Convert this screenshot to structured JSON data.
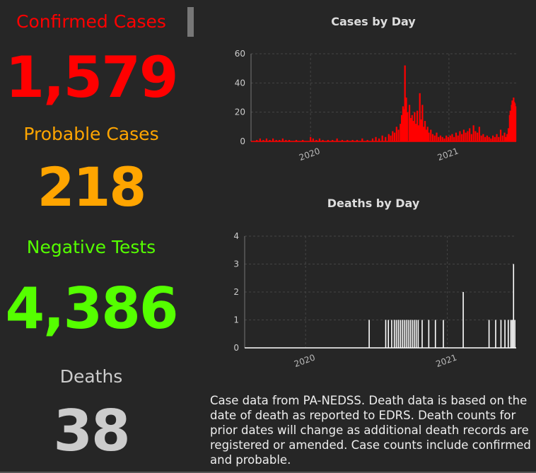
{
  "stats": {
    "confirmed": {
      "label": "Confirmed Cases",
      "value": "1,579",
      "color": "#ff0000"
    },
    "probable": {
      "label": "Probable Cases",
      "value": "218",
      "color": "#ffa500"
    },
    "negative": {
      "label": "Negative Tests",
      "value": "4,386",
      "color": "#55ff00"
    },
    "deaths": {
      "label": "Deaths",
      "value": "38",
      "color": "#cccccc"
    }
  },
  "footnote": "Case data from PA-NEDSS.  Death data is based on the date of death as reported to EDRS. Death counts for prior dates will change as additional death records are registered or amended.  Case counts include confirmed and probable.",
  "chart_data": [
    {
      "type": "bar",
      "title": "Cases by Day",
      "color": "#ff0000",
      "xlim": [
        "2020-03-01",
        "2021-04-15"
      ],
      "ylim": [
        0,
        60
      ],
      "yticks": [
        0,
        20,
        40,
        60
      ],
      "xticks": [
        {
          "date": "2020-06-01",
          "label": "2020"
        },
        {
          "date": "2021-01-01",
          "label": "2021"
        }
      ],
      "grid": true,
      "points": [
        [
          "2020-03-10",
          1
        ],
        [
          "2020-03-15",
          2
        ],
        [
          "2020-03-20",
          1
        ],
        [
          "2020-03-25",
          2
        ],
        [
          "2020-03-30",
          1
        ],
        [
          "2020-04-04",
          2
        ],
        [
          "2020-04-09",
          1
        ],
        [
          "2020-04-14",
          1
        ],
        [
          "2020-04-19",
          2
        ],
        [
          "2020-04-24",
          1
        ],
        [
          "2020-04-29",
          1
        ],
        [
          "2020-05-10",
          1
        ],
        [
          "2020-05-20",
          1
        ],
        [
          "2020-06-01",
          3
        ],
        [
          "2020-06-05",
          2
        ],
        [
          "2020-06-10",
          1
        ],
        [
          "2020-06-15",
          2
        ],
        [
          "2020-06-20",
          1
        ],
        [
          "2020-06-28",
          1
        ],
        [
          "2020-07-05",
          1
        ],
        [
          "2020-07-12",
          2
        ],
        [
          "2020-07-20",
          1
        ],
        [
          "2020-07-28",
          1
        ],
        [
          "2020-08-05",
          1
        ],
        [
          "2020-08-12",
          1
        ],
        [
          "2020-08-20",
          2
        ],
        [
          "2020-08-28",
          1
        ],
        [
          "2020-09-05",
          2
        ],
        [
          "2020-09-10",
          3
        ],
        [
          "2020-09-15",
          2
        ],
        [
          "2020-09-20",
          4
        ],
        [
          "2020-09-25",
          3
        ],
        [
          "2020-09-30",
          5
        ],
        [
          "2020-10-03",
          4
        ],
        [
          "2020-10-06",
          7
        ],
        [
          "2020-10-09",
          6
        ],
        [
          "2020-10-12",
          10
        ],
        [
          "2020-10-15",
          8
        ],
        [
          "2020-10-18",
          12
        ],
        [
          "2020-10-20",
          18
        ],
        [
          "2020-10-22",
          24
        ],
        [
          "2020-10-24",
          22
        ],
        [
          "2020-10-25",
          52
        ],
        [
          "2020-10-27",
          30
        ],
        [
          "2020-10-29",
          20
        ],
        [
          "2020-11-01",
          25
        ],
        [
          "2020-11-03",
          16
        ],
        [
          "2020-11-05",
          18
        ],
        [
          "2020-11-07",
          14
        ],
        [
          "2020-11-09",
          20
        ],
        [
          "2020-11-11",
          12
        ],
        [
          "2020-11-13",
          21
        ],
        [
          "2020-11-15",
          11
        ],
        [
          "2020-11-17",
          33
        ],
        [
          "2020-11-19",
          15
        ],
        [
          "2020-11-21",
          25
        ],
        [
          "2020-11-23",
          10
        ],
        [
          "2020-11-25",
          14
        ],
        [
          "2020-11-27",
          8
        ],
        [
          "2020-11-29",
          10
        ],
        [
          "2020-12-01",
          6
        ],
        [
          "2020-12-04",
          8
        ],
        [
          "2020-12-07",
          5
        ],
        [
          "2020-12-10",
          4
        ],
        [
          "2020-12-13",
          6
        ],
        [
          "2020-12-16",
          3
        ],
        [
          "2020-12-19",
          4
        ],
        [
          "2020-12-22",
          3
        ],
        [
          "2020-12-25",
          2
        ],
        [
          "2020-12-28",
          4
        ],
        [
          "2020-12-31",
          3
        ],
        [
          "2021-01-03",
          4
        ],
        [
          "2021-01-06",
          5
        ],
        [
          "2021-01-09",
          3
        ],
        [
          "2021-01-12",
          6
        ],
        [
          "2021-01-15",
          4
        ],
        [
          "2021-01-18",
          7
        ],
        [
          "2021-01-21",
          5
        ],
        [
          "2021-01-24",
          8
        ],
        [
          "2021-01-27",
          6
        ],
        [
          "2021-01-30",
          7
        ],
        [
          "2021-02-02",
          9
        ],
        [
          "2021-02-05",
          5
        ],
        [
          "2021-02-08",
          11
        ],
        [
          "2021-02-11",
          7
        ],
        [
          "2021-02-14",
          6
        ],
        [
          "2021-02-17",
          10
        ],
        [
          "2021-02-20",
          4
        ],
        [
          "2021-02-23",
          5
        ],
        [
          "2021-02-26",
          3
        ],
        [
          "2021-03-01",
          4
        ],
        [
          "2021-03-04",
          3
        ],
        [
          "2021-03-07",
          2
        ],
        [
          "2021-03-10",
          4
        ],
        [
          "2021-03-13",
          3
        ],
        [
          "2021-03-16",
          5
        ],
        [
          "2021-03-19",
          3
        ],
        [
          "2021-03-22",
          8
        ],
        [
          "2021-03-25",
          4
        ],
        [
          "2021-03-28",
          6
        ],
        [
          "2021-03-30",
          3
        ],
        [
          "2021-04-01",
          5
        ],
        [
          "2021-04-03",
          9
        ],
        [
          "2021-04-05",
          18
        ],
        [
          "2021-04-06",
          21
        ],
        [
          "2021-04-07",
          15
        ],
        [
          "2021-04-08",
          25
        ],
        [
          "2021-04-09",
          28
        ],
        [
          "2021-04-10",
          20
        ],
        [
          "2021-04-11",
          30
        ],
        [
          "2021-04-12",
          27
        ],
        [
          "2021-04-13",
          26
        ],
        [
          "2021-04-14",
          24
        ]
      ]
    },
    {
      "type": "bar",
      "title": "Deaths by Day",
      "color": "#ffffff",
      "xlim": [
        "2020-03-01",
        "2021-04-15"
      ],
      "ylim": [
        0,
        4
      ],
      "yticks": [
        0,
        1,
        2,
        3,
        4
      ],
      "xticks": [
        {
          "date": "2020-06-01",
          "label": "2020"
        },
        {
          "date": "2021-01-01",
          "label": "2021"
        }
      ],
      "grid": true,
      "points": [
        [
          "2020-09-05",
          1
        ],
        [
          "2020-09-30",
          1
        ],
        [
          "2020-10-04",
          1
        ],
        [
          "2020-10-09",
          1
        ],
        [
          "2020-10-13",
          1
        ],
        [
          "2020-10-16",
          1
        ],
        [
          "2020-10-19",
          1
        ],
        [
          "2020-10-22",
          1
        ],
        [
          "2020-10-25",
          1
        ],
        [
          "2020-10-28",
          1
        ],
        [
          "2020-10-31",
          1
        ],
        [
          "2020-11-03",
          1
        ],
        [
          "2020-11-06",
          1
        ],
        [
          "2020-11-09",
          1
        ],
        [
          "2020-11-12",
          1
        ],
        [
          "2020-11-15",
          1
        ],
        [
          "2020-11-18",
          1
        ],
        [
          "2020-11-24",
          1
        ],
        [
          "2020-12-04",
          1
        ],
        [
          "2020-12-14",
          1
        ],
        [
          "2020-12-26",
          1
        ],
        [
          "2021-01-25",
          2
        ],
        [
          "2021-03-05",
          1
        ],
        [
          "2021-03-15",
          1
        ],
        [
          "2021-03-23",
          1
        ],
        [
          "2021-03-29",
          1
        ],
        [
          "2021-04-03",
          1
        ],
        [
          "2021-04-07",
          1
        ],
        [
          "2021-04-09",
          1
        ],
        [
          "2021-04-11",
          3
        ],
        [
          "2021-04-13",
          1
        ]
      ]
    }
  ]
}
